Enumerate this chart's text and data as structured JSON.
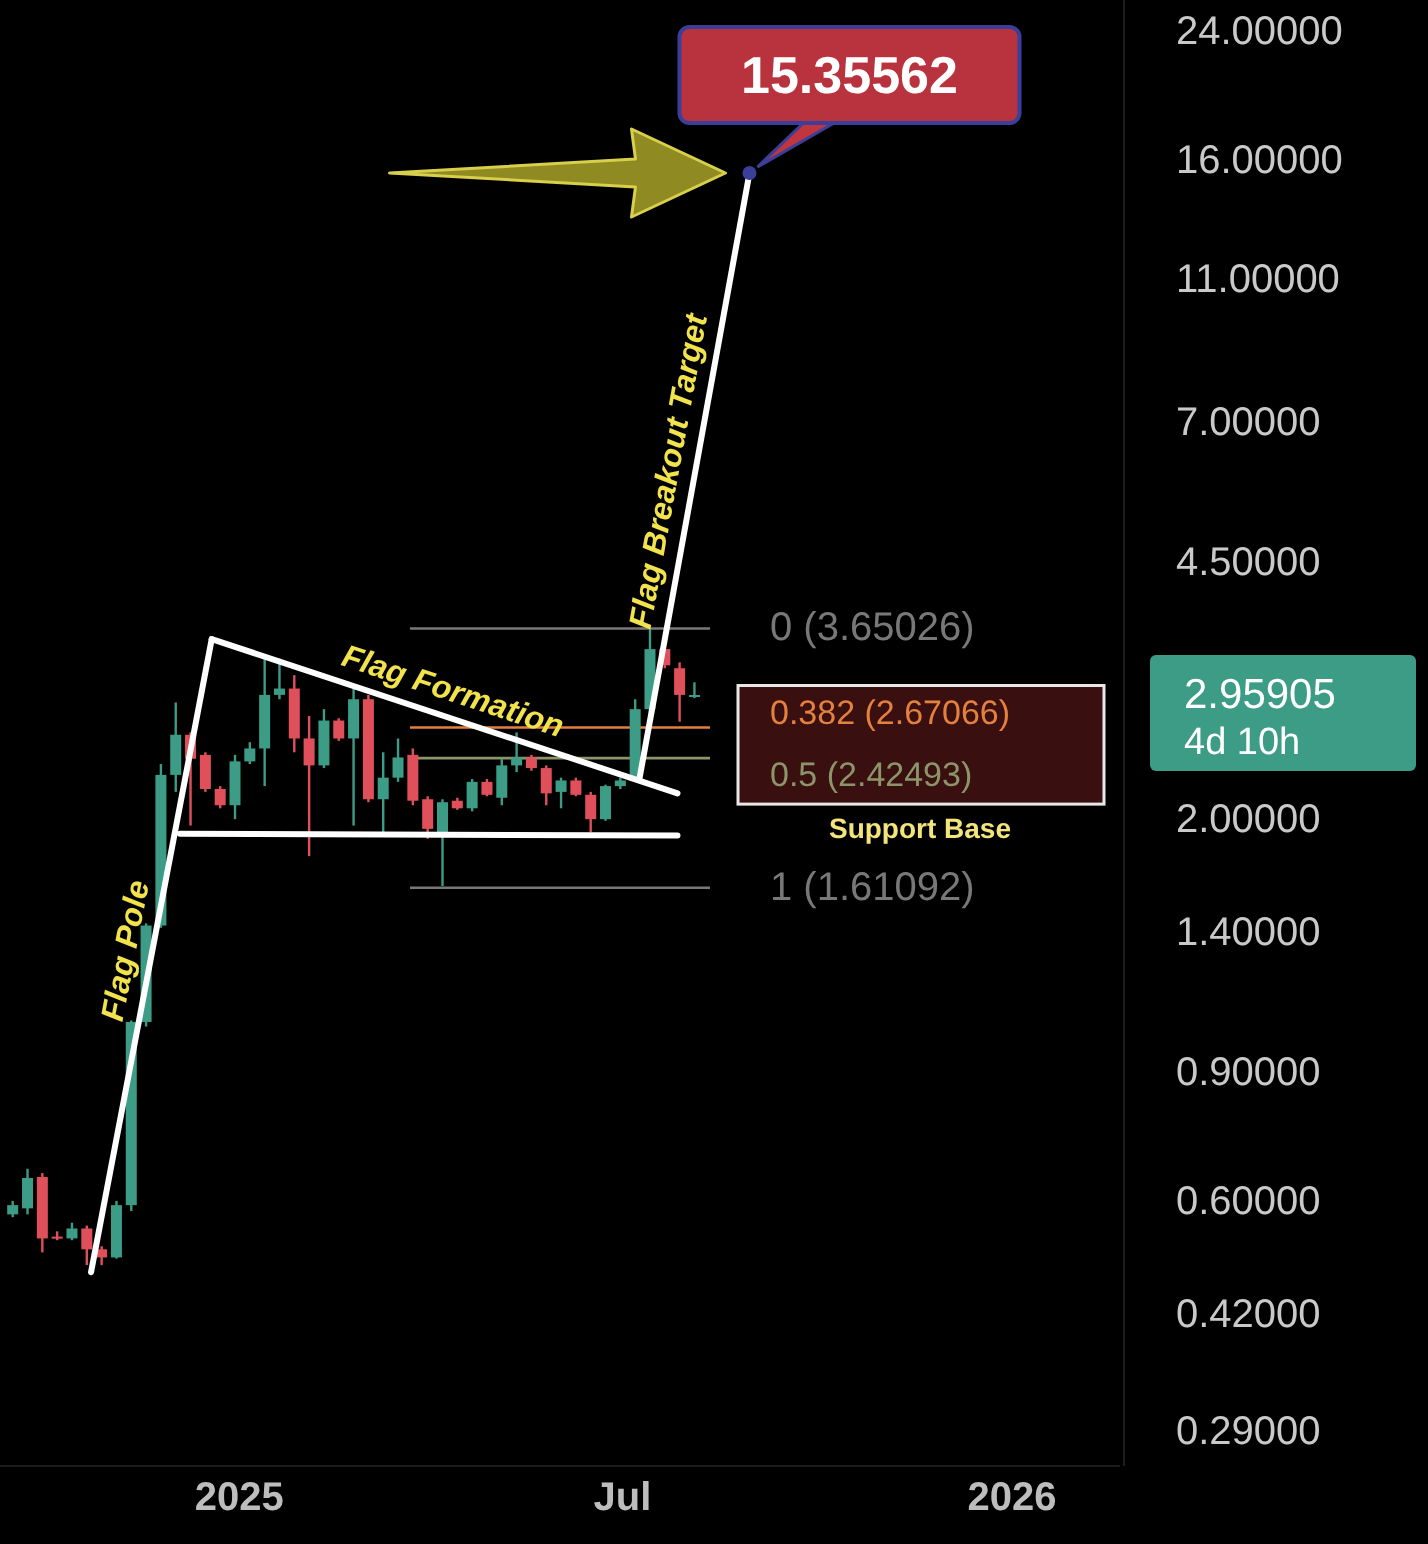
{
  "chart_data": {
    "type": "candlestick",
    "log": true,
    "legend": false,
    "grid": false,
    "xlim": [
      "2024-09-10",
      "2026-02-21"
    ],
    "ylim": [
      0.26,
      26.5
    ],
    "xticks": [
      {
        "value": "2025-01-01",
        "label": "2025"
      },
      {
        "value": "2025-07-01",
        "label": "Jul"
      },
      {
        "value": "2026-01-01",
        "label": "2026"
      }
    ],
    "yticks": [
      {
        "value": 24,
        "label": "24.00000"
      },
      {
        "value": 16,
        "label": "16.00000"
      },
      {
        "value": 11,
        "label": "11.00000"
      },
      {
        "value": 7,
        "label": "7.00000"
      },
      {
        "value": 4.5,
        "label": "4.50000"
      },
      {
        "value": 2,
        "label": "2.00000"
      },
      {
        "value": 1.4,
        "label": "1.40000"
      },
      {
        "value": 0.9,
        "label": "0.90000"
      },
      {
        "value": 0.6,
        "label": "0.60000"
      },
      {
        "value": 0.42,
        "label": "0.42000"
      },
      {
        "value": 0.29,
        "label": "0.29000"
      }
    ],
    "colors": [
      "#3d9c86",
      "#3d9c86",
      "#e0505b",
      "#e0505b",
      "#3d9c86",
      "#e0505b",
      "#e0505b",
      "#3d9c86",
      "#3d9c86",
      "#3d9c86",
      "#3d9c86",
      "#3d9c86",
      "#e0505b",
      "#e0505b",
      "#e0505b",
      "#3d9c86",
      "#3d9c86",
      "#3d9c86",
      "#3d9c86",
      "#e0505b",
      "#e0505b",
      "#3d9c86",
      "#e0505b",
      "#3d9c86",
      "#e0505b",
      "#3d9c86",
      "#3d9c86",
      "#e0505b",
      "#e0505b",
      "#3d9c86",
      "#e0505b",
      "#3d9c86",
      "#e0505b",
      "#3d9c86",
      "#3d9c86",
      "#e0505b",
      "#e0505b",
      "#3d9c86",
      "#e0505b",
      "#e0505b",
      "#3d9c86",
      "#3d9c86",
      "#3d9c86",
      "#3d9c86",
      "#e0505b",
      "#e0505b",
      "#3d9c86"
    ],
    "x": [
      "2024-09-16",
      "2024-09-23",
      "2024-09-30",
      "2024-10-07",
      "2024-10-14",
      "2024-10-21",
      "2024-10-28",
      "2024-11-04",
      "2024-11-11",
      "2024-11-18",
      "2024-11-25",
      "2024-12-02",
      "2024-12-09",
      "2024-12-16",
      "2024-12-23",
      "2024-12-30",
      "2025-01-06",
      "2025-01-13",
      "2025-01-20",
      "2025-01-27",
      "2025-02-03",
      "2025-02-10",
      "2025-02-17",
      "2025-02-24",
      "2025-03-03",
      "2025-03-10",
      "2025-03-17",
      "2025-03-24",
      "2025-03-31",
      "2025-04-07",
      "2025-04-14",
      "2025-04-21",
      "2025-04-28",
      "2025-05-05",
      "2025-05-12",
      "2025-05-19",
      "2025-05-26",
      "2025-06-02",
      "2025-06-09",
      "2025-06-16",
      "2025-06-23",
      "2025-06-30",
      "2025-07-07",
      "2025-07-14",
      "2025-07-21",
      "2025-07-28",
      "2025-08-04"
    ],
    "ohlc": [
      [
        0.575,
        0.6,
        0.57,
        0.592
      ],
      [
        0.586,
        0.664,
        0.575,
        0.645
      ],
      [
        0.647,
        0.655,
        0.51,
        0.533
      ],
      [
        0.536,
        0.545,
        0.53,
        0.534
      ],
      [
        0.533,
        0.56,
        0.53,
        0.55
      ],
      [
        0.55,
        0.555,
        0.49,
        0.515
      ],
      [
        0.515,
        0.52,
        0.49,
        0.502
      ],
      [
        0.502,
        0.6,
        0.5,
        0.592
      ],
      [
        0.592,
        1.06,
        0.581,
        1.055
      ],
      [
        1.055,
        1.44,
        1.04,
        1.43
      ],
      [
        1.43,
        2.38,
        1.42,
        2.3
      ],
      [
        2.3,
        2.89,
        2.18,
        2.61
      ],
      [
        2.61,
        2.63,
        1.96,
        2.42
      ],
      [
        2.45,
        2.47,
        2.18,
        2.2
      ],
      [
        2.2,
        2.22,
        2.07,
        2.09
      ],
      [
        2.09,
        2.45,
        2.0,
        2.4
      ],
      [
        2.4,
        2.55,
        2.38,
        2.5
      ],
      [
        2.5,
        3.35,
        2.22,
        2.96
      ],
      [
        2.96,
        3.32,
        2.92,
        3.02
      ],
      [
        3.02,
        3.15,
        2.47,
        2.58
      ],
      [
        2.58,
        2.77,
        1.78,
        2.37
      ],
      [
        2.37,
        2.83,
        2.35,
        2.73
      ],
      [
        2.73,
        2.75,
        2.56,
        2.58
      ],
      [
        2.58,
        3.02,
        1.96,
        2.92
      ],
      [
        2.92,
        2.96,
        2.11,
        2.13
      ],
      [
        2.13,
        2.47,
        1.9,
        2.28
      ],
      [
        2.28,
        2.58,
        2.25,
        2.43
      ],
      [
        2.45,
        2.5,
        2.09,
        2.12
      ],
      [
        2.13,
        2.15,
        1.88,
        1.94
      ],
      [
        1.92,
        2.13,
        1.62,
        2.11
      ],
      [
        2.12,
        2.14,
        2.06,
        2.07
      ],
      [
        2.07,
        2.27,
        2.05,
        2.25
      ],
      [
        2.25,
        2.27,
        2.15,
        2.16
      ],
      [
        2.14,
        2.42,
        2.09,
        2.37
      ],
      [
        2.37,
        2.63,
        2.32,
        2.43
      ],
      [
        2.43,
        2.45,
        2.33,
        2.35
      ],
      [
        2.35,
        2.37,
        2.09,
        2.17
      ],
      [
        2.18,
        2.28,
        2.07,
        2.26
      ],
      [
        2.26,
        2.28,
        2.15,
        2.16
      ],
      [
        2.16,
        2.18,
        1.92,
        2.0
      ],
      [
        2.0,
        2.23,
        1.99,
        2.22
      ],
      [
        2.22,
        2.28,
        2.2,
        2.26
      ],
      [
        2.26,
        2.92,
        2.25,
        2.83
      ],
      [
        2.83,
        3.65,
        2.8,
        3.42
      ],
      [
        3.42,
        3.46,
        3.22,
        3.25
      ],
      [
        3.22,
        3.28,
        2.72,
        2.96
      ],
      [
        2.95,
        3.08,
        2.93,
        2.959
      ]
    ],
    "series": [
      {
        "type": "line",
        "name": "Flag Pole",
        "color": "#ffffff",
        "x": [
          "2024-10-23",
          "2024-12-19"
        ],
        "values": [
          0.479,
          3.53
        ]
      },
      {
        "type": "line",
        "name": "Flag Formation",
        "color": "#ffffff",
        "x": [
          "2024-12-19",
          "2025-07-27"
        ],
        "values": [
          3.53,
          2.17
        ]
      },
      {
        "type": "line",
        "color": "#ffffff",
        "x": [
          "2024-12-04",
          "2025-07-27"
        ],
        "values": [
          1.91,
          1.9
        ]
      },
      {
        "type": "line",
        "name": "Flag Breakout Target",
        "color": "#ffffff",
        "x": [
          "2025-07-09",
          "2025-08-30"
        ],
        "values": [
          2.27,
          15.35562
        ]
      }
    ],
    "ref_lines": [
      {
        "axis": "y",
        "value": 3.65026,
        "label": "0 (3.65026)",
        "color": "#787878"
      },
      {
        "axis": "y",
        "value": 2.67066,
        "label": "0.382 (2.67066)",
        "color": "#e4813f"
      },
      {
        "axis": "y",
        "value": 2.42493,
        "label": "0.5 (2.42493)",
        "color": "#8c956a"
      },
      {
        "axis": "y",
        "value": 1.61092,
        "label": "1 (1.61092)",
        "color": "#787878"
      }
    ],
    "annotations": [
      {
        "text": "15.35562",
        "x": "2025-08-30",
        "y": 15.35562
      },
      "2.95905",
      "4d 10h",
      "Support Base"
    ]
  }
}
